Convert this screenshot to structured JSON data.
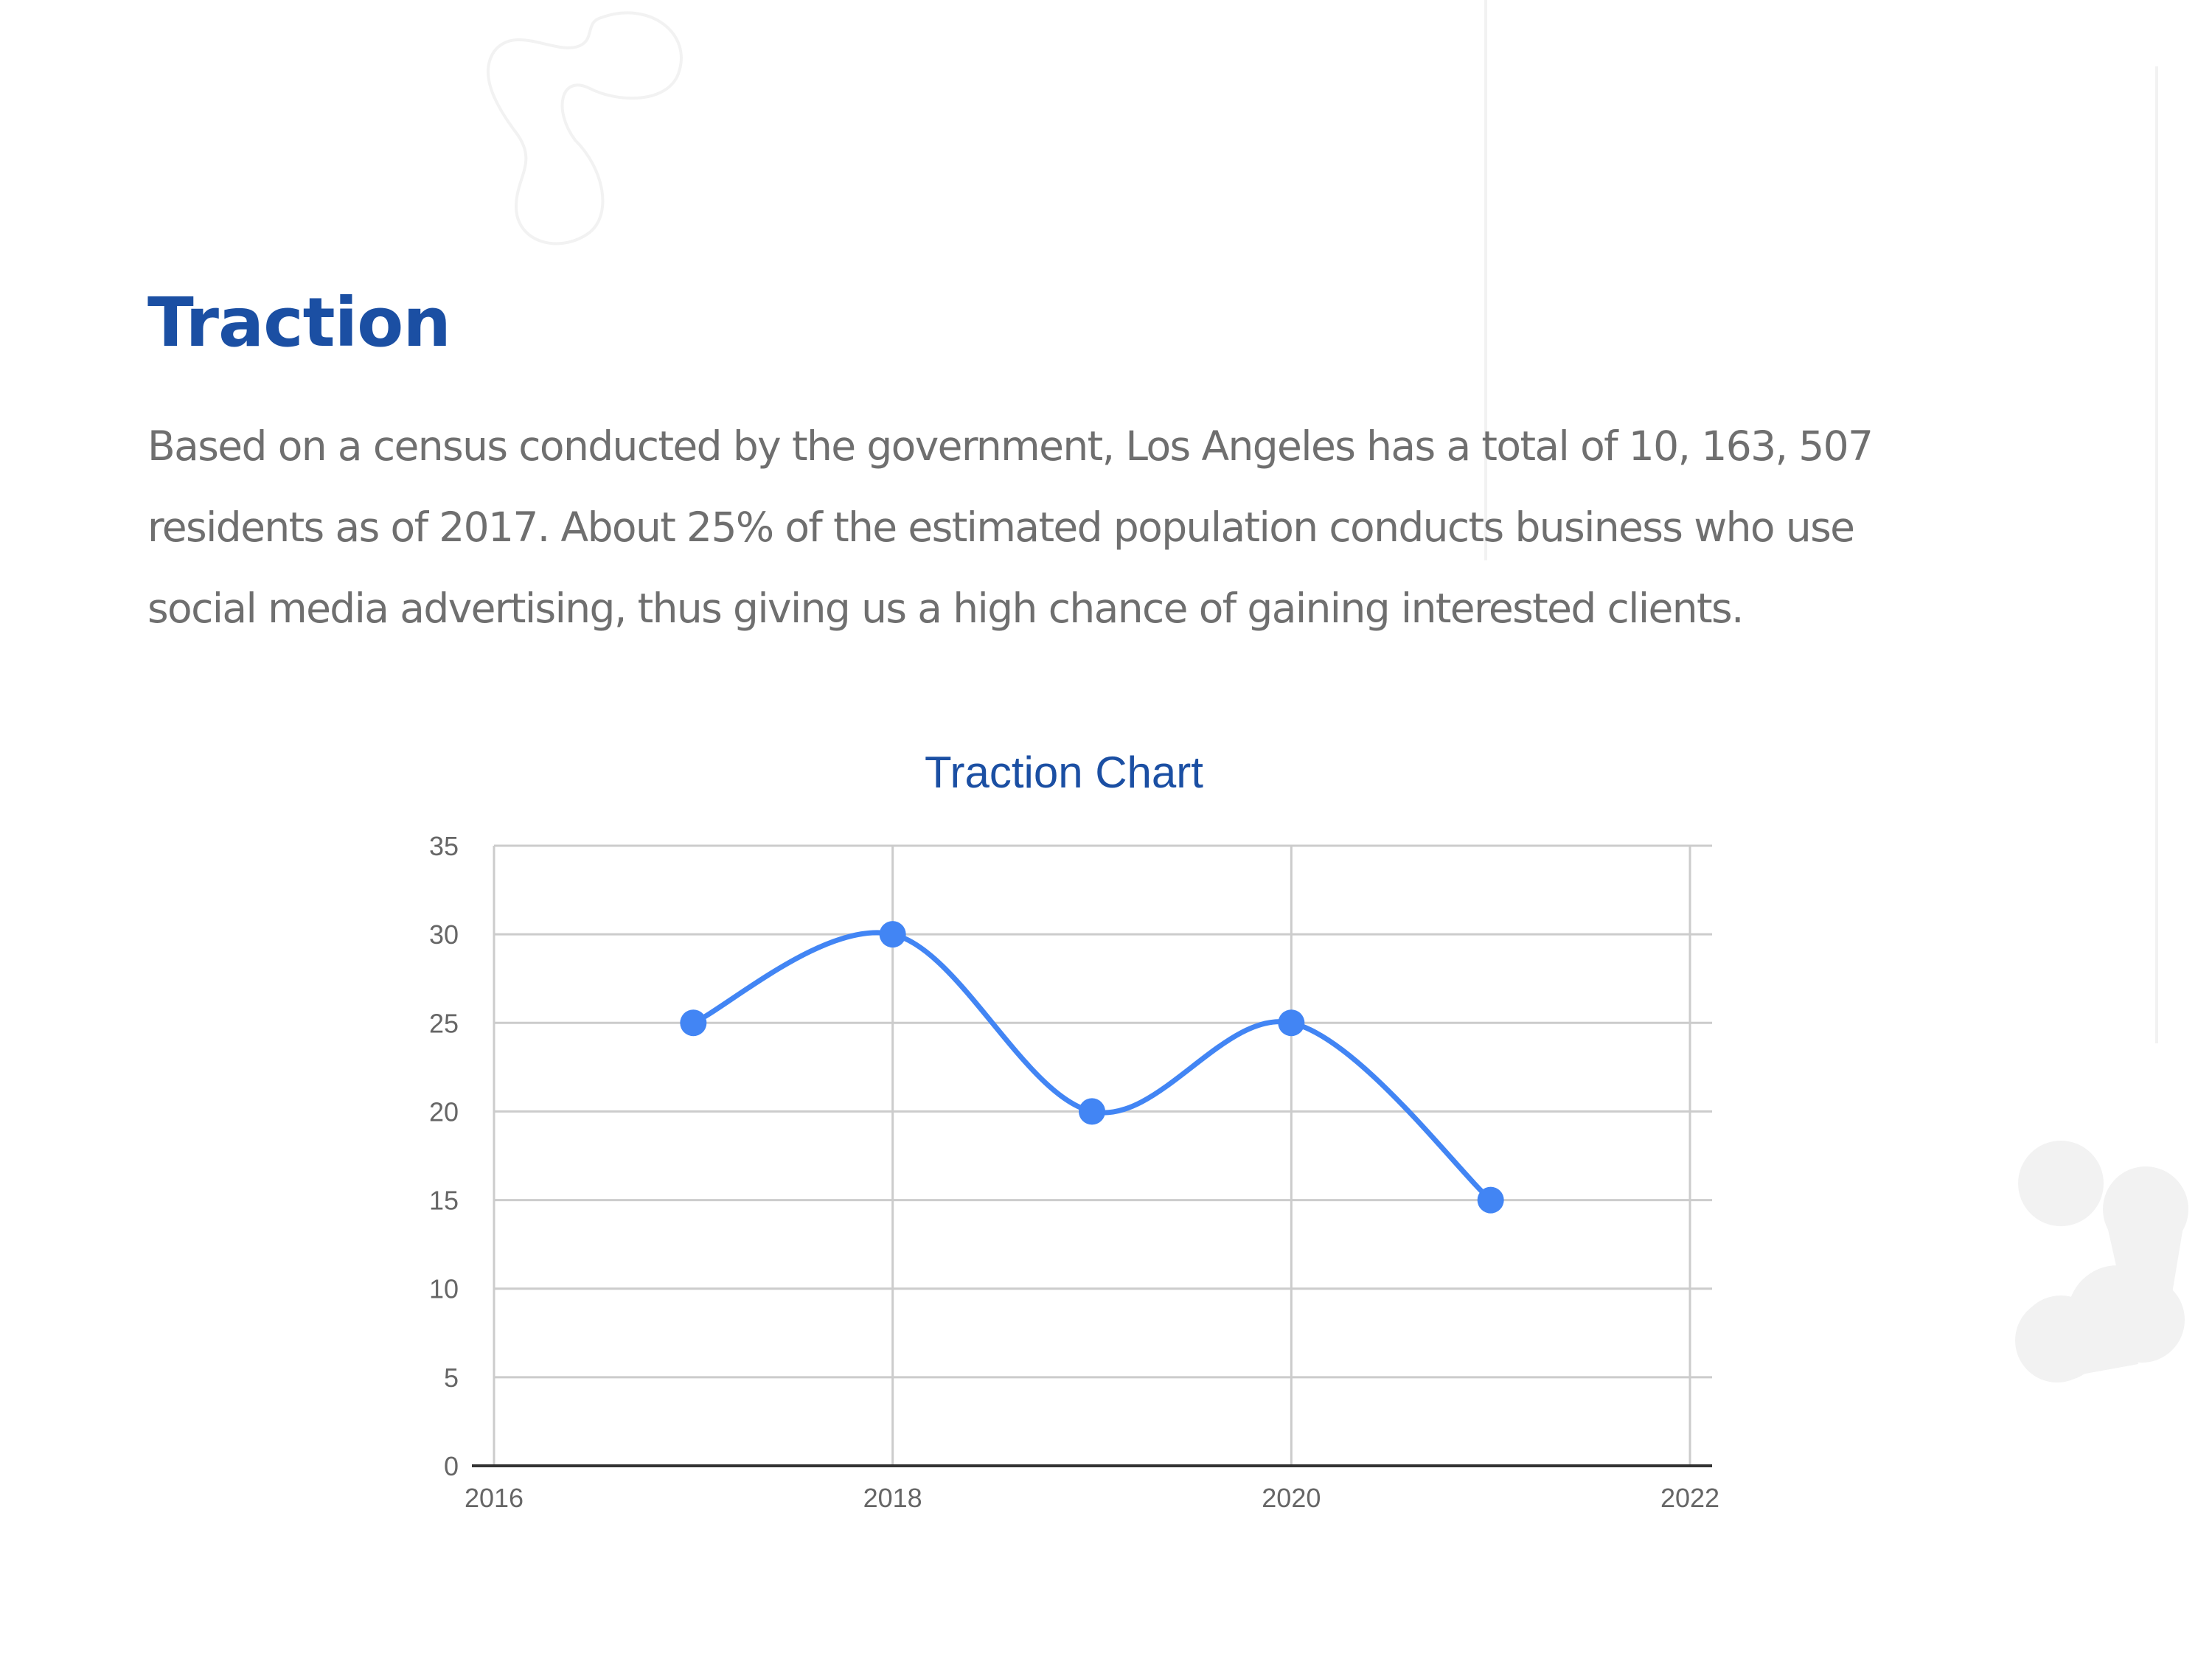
{
  "slide": {
    "title": "Traction",
    "body": "Based on a census conducted by the government, Los Angeles has a total of 10, 163, 507 residents as of 2017. About 25% of the estimated population conducts business who use social media advertising, thus giving us a high chance of gaining interested clients."
  },
  "colors": {
    "title": "#1b4fa3",
    "body_text": "#6f6f6f",
    "series": "#4285f4",
    "grid": "#cccccc",
    "axis": "#333333",
    "tick_label": "#666666",
    "decoration": "#f2f2f2"
  },
  "chart_data": {
    "type": "line",
    "title": "Traction Chart",
    "xlabel": "",
    "ylabel": "",
    "x": [
      2017,
      2018,
      2019,
      2020,
      2021
    ],
    "series": [
      {
        "values": [
          25,
          30,
          20,
          25,
          15
        ]
      }
    ],
    "xlim": [
      2016,
      2022
    ],
    "ylim": [
      0,
      35
    ],
    "x_ticks": [
      "2016",
      "2018",
      "2020",
      "2022"
    ],
    "y_ticks": [
      "0",
      "5",
      "10",
      "15",
      "20",
      "25",
      "30",
      "35"
    ],
    "smooth": true,
    "markers": true,
    "grid": true,
    "legend": "none"
  }
}
